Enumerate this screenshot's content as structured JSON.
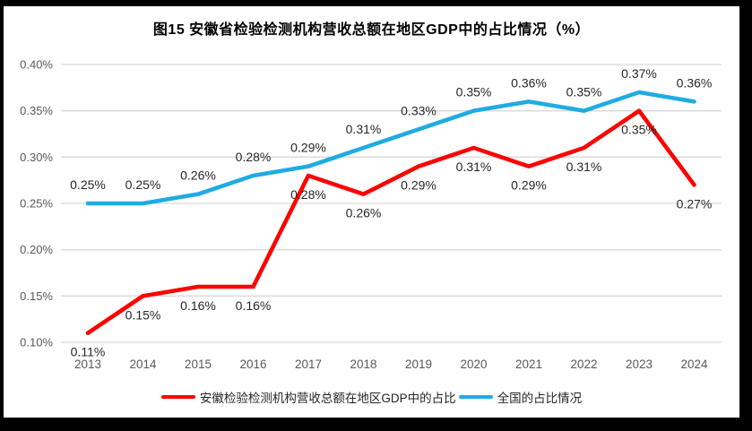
{
  "title": "图15 安徽省检验检测机构营收总额在地区GDP中的占比情况（%）",
  "colors": {
    "frame": "#000000",
    "background": "#ffffff",
    "gridline": "#d9d9d9",
    "axis_label": "#595959",
    "data_label": "#262626",
    "title_text": "#000000",
    "anhui_series": "#fe0000",
    "national_series": "#1fabe3"
  },
  "chart_data": {
    "type": "line",
    "title": "图15 安徽省检验检测机构营收总额在地区GDP中的占比情况（%）",
    "categories": [
      "2013",
      "2014",
      "2015",
      "2016",
      "2017",
      "2018",
      "2019",
      "2020",
      "2021",
      "2022",
      "2023",
      "2024"
    ],
    "ylim": [
      0.1,
      0.4
    ],
    "y_tick_values": [
      0.4,
      0.35,
      0.3,
      0.25,
      0.2,
      0.15,
      0.1
    ],
    "y_tick_labels": [
      "0.40%",
      "0.35%",
      "0.30%",
      "0.25%",
      "0.20%",
      "0.15%",
      "0.10%"
    ],
    "grid": true,
    "legend_position": "bottom",
    "series": [
      {
        "name": "安徽检验检测机构营收总额在地区GDP中的占比",
        "color": "#fe0000",
        "label_position": "below",
        "values": [
          0.11,
          0.15,
          0.16,
          0.16,
          0.28,
          0.26,
          0.29,
          0.31,
          0.29,
          0.31,
          0.35,
          0.27
        ],
        "labels": [
          "0.11%",
          "0.15%",
          "0.16%",
          "0.16%",
          "0.28%",
          "0.26%",
          "0.29%",
          "0.31%",
          "0.29%",
          "0.31%",
          "0.35%",
          "0.27%"
        ]
      },
      {
        "name": "全国的占比情况",
        "color": "#1fabe3",
        "label_position": "above",
        "values": [
          0.25,
          0.25,
          0.26,
          0.28,
          0.29,
          0.31,
          0.33,
          0.35,
          0.36,
          0.35,
          0.37,
          0.36
        ],
        "labels": [
          "0.25%",
          "0.25%",
          "0.26%",
          "0.28%",
          "0.29%",
          "0.31%",
          "0.33%",
          "0.35%",
          "0.36%",
          "0.35%",
          "0.37%",
          "0.36%"
        ]
      }
    ]
  },
  "legend": {
    "items": [
      {
        "label": "安徽检验检测机构营收总额在地区GDP中的占比",
        "color": "#fe0000"
      },
      {
        "label": "全国的占比情况",
        "color": "#1fabe3"
      }
    ]
  }
}
